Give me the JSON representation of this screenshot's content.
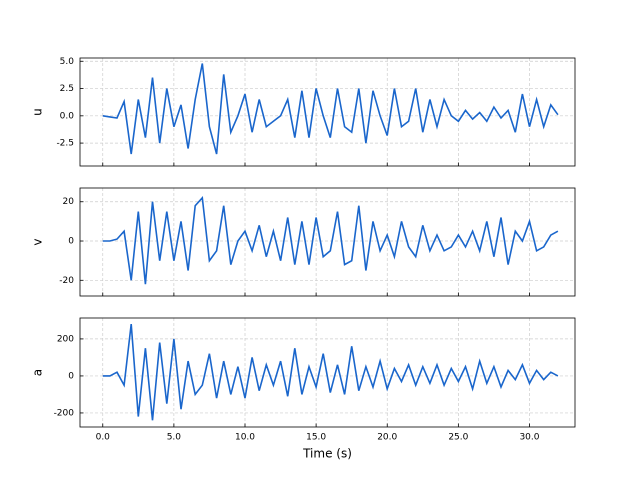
{
  "chart_data": [
    {
      "type": "line",
      "ylabel": "u",
      "color": "#1a66cc",
      "grid": true,
      "x": [
        0,
        0.5,
        1,
        1.5,
        2,
        2.5,
        3,
        3.5,
        4,
        4.5,
        5,
        5.5,
        6,
        6.5,
        7,
        7.5,
        8,
        8.5,
        9,
        9.5,
        10,
        10.5,
        11,
        11.5,
        12,
        12.5,
        13,
        13.5,
        14,
        14.5,
        15,
        15.5,
        16,
        16.5,
        17,
        17.5,
        18,
        18.5,
        19,
        19.5,
        20,
        20.5,
        21,
        21.5,
        22,
        22.5,
        23,
        23.5,
        24,
        24.5,
        25,
        25.5,
        26,
        26.5,
        27,
        27.5,
        28,
        28.5,
        29,
        29.5,
        30,
        30.5,
        31,
        31.5,
        32
      ],
      "values": [
        0,
        -0.1,
        -0.2,
        1.3,
        -3.5,
        1.5,
        -2,
        3.5,
        -2.5,
        2.5,
        -1,
        1,
        -3,
        1.5,
        4.8,
        -1,
        -3.5,
        3.8,
        -1.5,
        0,
        2,
        -1.5,
        1.5,
        -1,
        -0.5,
        0,
        1.5,
        -2,
        2.3,
        -2,
        2.5,
        0,
        -2,
        2.5,
        -1,
        -1.5,
        2.5,
        -2.5,
        2.3,
        0,
        -1.8,
        2.5,
        -1,
        -0.5,
        2.5,
        -1.5,
        1.5,
        -1,
        1.5,
        0,
        -0.5,
        0.5,
        -0.3,
        0.3,
        -0.5,
        0.8,
        -0.2,
        0.5,
        -1.5,
        2,
        -1,
        1.5,
        -1,
        1,
        0.1
      ],
      "ylim": [
        -4.6,
        5.3
      ],
      "yticks": [
        {
          "value": -2.5,
          "label": "-2.5"
        },
        {
          "value": 0,
          "label": "0.0"
        },
        {
          "value": 2.5,
          "label": "2.5"
        },
        {
          "value": 5,
          "label": "5.0"
        }
      ]
    },
    {
      "type": "line",
      "ylabel": "v",
      "color": "#1a66cc",
      "grid": true,
      "x": [
        0,
        0.5,
        1,
        1.5,
        2,
        2.5,
        3,
        3.5,
        4,
        4.5,
        5,
        5.5,
        6,
        6.5,
        7,
        7.5,
        8,
        8.5,
        9,
        9.5,
        10,
        10.5,
        11,
        11.5,
        12,
        12.5,
        13,
        13.5,
        14,
        14.5,
        15,
        15.5,
        16,
        16.5,
        17,
        17.5,
        18,
        18.5,
        19,
        19.5,
        20,
        20.5,
        21,
        21.5,
        22,
        22.5,
        23,
        23.5,
        24,
        24.5,
        25,
        25.5,
        26,
        26.5,
        27,
        27.5,
        28,
        28.5,
        29,
        29.5,
        30,
        30.5,
        31,
        31.5,
        32
      ],
      "values": [
        0,
        0,
        1,
        5,
        -20,
        15,
        -22,
        20,
        -10,
        15,
        -10,
        10,
        -15,
        18,
        22,
        -10,
        -5,
        18,
        -12,
        0,
        5,
        -5,
        8,
        -8,
        5,
        -10,
        12,
        -12,
        10,
        -12,
        12,
        -8,
        -5,
        15,
        -12,
        -10,
        18,
        -15,
        10,
        -5,
        3,
        -8,
        10,
        -3,
        -8,
        8,
        -5,
        3,
        -5,
        -3,
        3,
        -3,
        5,
        -5,
        10,
        -8,
        12,
        -12,
        5,
        0,
        10,
        -5,
        -3,
        3,
        5
      ],
      "ylim": [
        -28,
        27
      ],
      "yticks": [
        -20,
        0,
        20
      ]
    },
    {
      "type": "line",
      "ylabel": "a",
      "xlabel": "Time (s)",
      "color": "#1a66cc",
      "grid": true,
      "x": [
        0,
        0.5,
        1,
        1.5,
        2,
        2.5,
        3,
        3.5,
        4,
        4.5,
        5,
        5.5,
        6,
        6.5,
        7,
        7.5,
        8,
        8.5,
        9,
        9.5,
        10,
        10.5,
        11,
        11.5,
        12,
        12.5,
        13,
        13.5,
        14,
        14.5,
        15,
        15.5,
        16,
        16.5,
        17,
        17.5,
        18,
        18.5,
        19,
        19.5,
        20,
        20.5,
        21,
        21.5,
        22,
        22.5,
        23,
        23.5,
        24,
        24.5,
        25,
        25.5,
        26,
        26.5,
        27,
        27.5,
        28,
        28.5,
        29,
        29.5,
        30,
        30.5,
        31,
        31.5,
        32
      ],
      "values": [
        0,
        0,
        20,
        -50,
        280,
        -220,
        150,
        -240,
        180,
        -150,
        200,
        -180,
        80,
        -100,
        -50,
        120,
        -120,
        80,
        -100,
        50,
        -120,
        100,
        -80,
        60,
        -50,
        80,
        -110,
        150,
        -100,
        50,
        -60,
        120,
        -90,
        60,
        -100,
        160,
        -80,
        50,
        -60,
        80,
        -70,
        40,
        -30,
        60,
        -50,
        50,
        -40,
        60,
        -50,
        40,
        -30,
        50,
        -70,
        80,
        -40,
        50,
        -60,
        30,
        -20,
        60,
        -40,
        30,
        -20,
        20,
        0
      ],
      "ylim": [
        -276,
        313
      ],
      "yticks": [
        -200,
        0,
        200
      ],
      "xlim": [
        -1.6,
        33.2
      ],
      "xticks": [
        {
          "value": 0,
          "label": "0.0"
        },
        {
          "value": 5,
          "label": "5.0"
        },
        {
          "value": 10,
          "label": "10.0"
        },
        {
          "value": 15,
          "label": "15.0"
        },
        {
          "value": 20,
          "label": "20.0"
        },
        {
          "value": 25,
          "label": "25.0"
        },
        {
          "value": 30,
          "label": "30.0"
        }
      ]
    }
  ]
}
